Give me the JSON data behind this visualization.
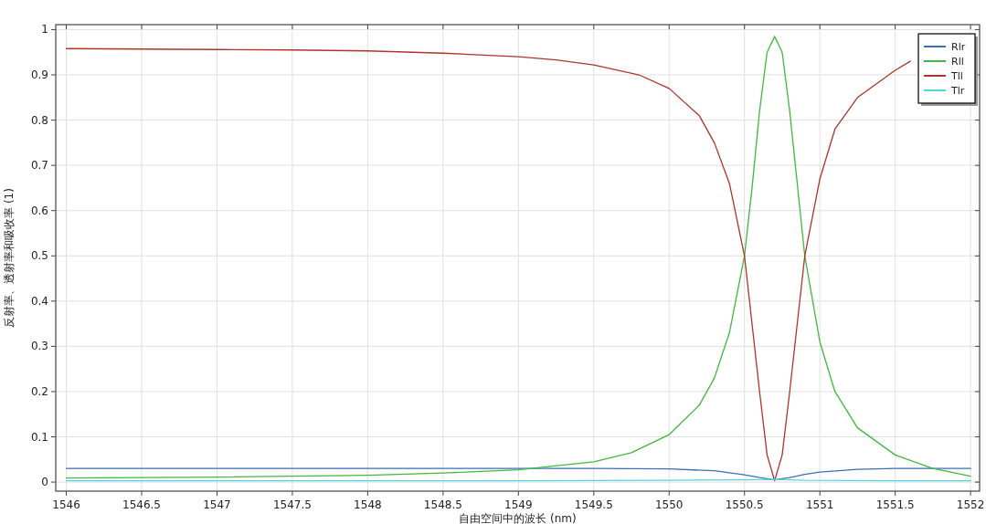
{
  "chart_data": {
    "type": "line",
    "xlabel": "自由空间中的波长 (nm)",
    "ylabel": "反射率、透射率和吸收率 (1)",
    "xlim": [
      1545.93,
      1552.06
    ],
    "ylim": [
      -0.02,
      1.011
    ],
    "xticks": [
      1546,
      1546.5,
      1547,
      1547.5,
      1548,
      1548.5,
      1549,
      1549.5,
      1550,
      1550.5,
      1551,
      1551.5,
      1552
    ],
    "yticks": [
      0,
      0.1,
      0.2,
      0.3,
      0.4,
      0.5,
      0.6,
      0.7,
      0.8,
      0.9,
      1
    ],
    "grid": true,
    "legend": "top right",
    "line_style": "solid",
    "marker": "none",
    "series": [
      {
        "name": "Rlr",
        "color": "#3b6fb6",
        "x": [
          1546,
          1547,
          1548,
          1549,
          1549.5,
          1550,
          1550.3,
          1550.5,
          1550.6,
          1550.7,
          1550.8,
          1550.9,
          1551,
          1551.25,
          1551.5,
          1552
        ],
        "values": [
          0.03,
          0.03,
          0.03,
          0.03,
          0.03,
          0.029,
          0.025,
          0.016,
          0.01,
          0.005,
          0.01,
          0.017,
          0.022,
          0.028,
          0.03,
          0.03
        ]
      },
      {
        "name": "Rll",
        "color": "#3fb93f",
        "x": [
          1546,
          1547,
          1548,
          1548.5,
          1549,
          1549.5,
          1549.75,
          1550,
          1550.2,
          1550.3,
          1550.4,
          1550.5,
          1550.55,
          1550.6,
          1550.65,
          1550.7,
          1550.75,
          1550.8,
          1550.85,
          1550.9,
          1551,
          1551.1,
          1551.25,
          1551.5,
          1551.75,
          1552
        ],
        "values": [
          0.009,
          0.011,
          0.015,
          0.02,
          0.027,
          0.045,
          0.065,
          0.105,
          0.17,
          0.23,
          0.33,
          0.5,
          0.65,
          0.82,
          0.95,
          0.985,
          0.95,
          0.82,
          0.66,
          0.5,
          0.31,
          0.2,
          0.12,
          0.06,
          0.03,
          0.013
        ]
      },
      {
        "name": "Tll",
        "color": "#b0332a",
        "x": [
          1546,
          1546.5,
          1547,
          1547.5,
          1548,
          1548.5,
          1549,
          1549.25,
          1549.5,
          1549.8,
          1550,
          1550.2,
          1550.3,
          1550.4,
          1550.5,
          1550.6,
          1550.65,
          1550.7,
          1550.75,
          1550.8,
          1550.9,
          1551,
          1551.1,
          1551.25,
          1551.5,
          1551.6
        ],
        "values": [
          0.958,
          0.957,
          0.956,
          0.955,
          0.953,
          0.948,
          0.94,
          0.933,
          0.922,
          0.9,
          0.87,
          0.81,
          0.75,
          0.66,
          0.5,
          0.2,
          0.06,
          0.003,
          0.06,
          0.2,
          0.5,
          0.67,
          0.78,
          0.85,
          0.91,
          0.93
        ]
      },
      {
        "name": "Tlr",
        "color": "#4fd5e0",
        "x": [
          1546,
          1548,
          1549,
          1550,
          1550.5,
          1550.7,
          1550.9,
          1551.5,
          1552
        ],
        "values": [
          0.003,
          0.003,
          0.003,
          0.004,
          0.005,
          0.006,
          0.004,
          0.003,
          0.003
        ]
      }
    ]
  }
}
